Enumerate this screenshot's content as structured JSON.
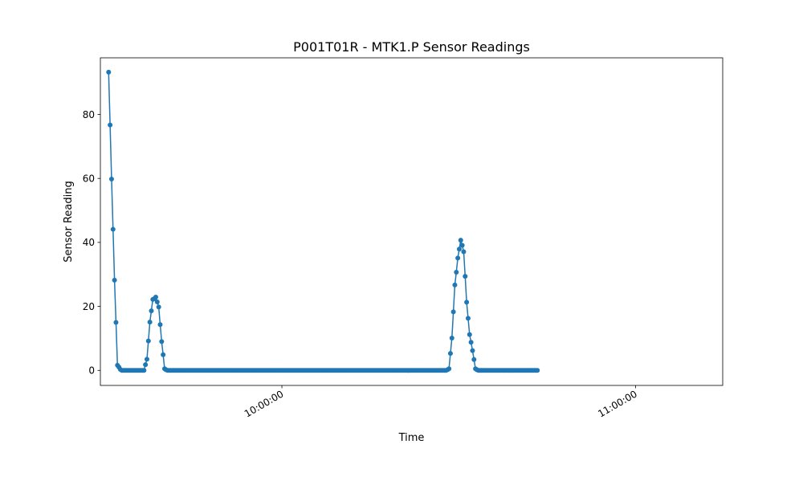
{
  "chart_data": {
    "type": "line",
    "title": "P001T01R - MTK1.P Sensor Readings",
    "xlabel": "Time",
    "ylabel": "Sensor Reading",
    "x_start": "09:30:36",
    "x_step_seconds": 15,
    "xlim": [
      "09:29:12",
      "11:14:48"
    ],
    "ylim": [
      -4.7,
      97.7
    ],
    "x_ticks": [
      "10:00:00",
      "11:00:00"
    ],
    "y_ticks": [
      0,
      20,
      40,
      60,
      80
    ],
    "grid": false,
    "legend": "none",
    "series": [
      {
        "color": "#1f77b4",
        "marker": "circle",
        "values": [
          93.2,
          76.7,
          59.8,
          44.1,
          28.2,
          15.0,
          1.6,
          1.0,
          0.3,
          0,
          0,
          0,
          0,
          0,
          0,
          0,
          0,
          0,
          0,
          0,
          0,
          0,
          0,
          0,
          0,
          1.8,
          3.5,
          9.2,
          15.1,
          18.6,
          22.2,
          22.4,
          22.9,
          21.4,
          19.8,
          14.3,
          9.0,
          4.9,
          0.5,
          0.2,
          0,
          0,
          0,
          0,
          0,
          0,
          0,
          0,
          0,
          0,
          0,
          0,
          0,
          0,
          0,
          0,
          0,
          0,
          0,
          0,
          0,
          0,
          0,
          0,
          0,
          0,
          0,
          0,
          0,
          0,
          0,
          0,
          0,
          0,
          0,
          0,
          0,
          0,
          0,
          0,
          0,
          0,
          0,
          0,
          0,
          0,
          0,
          0,
          0,
          0,
          0,
          0,
          0,
          0,
          0,
          0,
          0,
          0,
          0,
          0,
          0,
          0,
          0,
          0,
          0,
          0,
          0,
          0,
          0,
          0,
          0,
          0,
          0,
          0,
          0,
          0,
          0,
          0,
          0,
          0,
          0,
          0,
          0,
          0,
          0,
          0,
          0,
          0,
          0,
          0,
          0,
          0,
          0,
          0,
          0,
          0,
          0,
          0,
          0,
          0,
          0,
          0,
          0,
          0,
          0,
          0,
          0,
          0,
          0,
          0,
          0,
          0,
          0,
          0,
          0,
          0,
          0,
          0,
          0,
          0,
          0,
          0,
          0,
          0,
          0,
          0,
          0,
          0,
          0,
          0,
          0,
          0,
          0,
          0,
          0,
          0,
          0,
          0,
          0,
          0,
          0,
          0,
          0,
          0,
          0,
          0,
          0,
          0,
          0,
          0,
          0,
          0,
          0,
          0,
          0,
          0,
          0,
          0,
          0,
          0,
          0,
          0,
          0,
          0,
          0,
          0,
          0,
          0,
          0,
          0,
          0,
          0,
          0,
          0,
          0,
          0,
          0,
          0,
          0,
          0,
          0,
          0,
          0,
          0,
          0,
          0,
          0,
          0,
          0,
          0,
          0.2,
          0.5,
          5.3,
          10.1,
          18.3,
          26.7,
          30.7,
          35.1,
          37.9,
          40.7,
          39.1,
          37.1,
          29.4,
          21.3,
          16.3,
          11.2,
          8.8,
          6.2,
          3.4,
          0.5,
          0.2,
          0,
          0,
          0,
          0,
          0,
          0,
          0,
          0,
          0,
          0,
          0,
          0,
          0,
          0,
          0,
          0,
          0,
          0,
          0,
          0,
          0,
          0,
          0,
          0,
          0,
          0,
          0,
          0,
          0,
          0,
          0,
          0,
          0,
          0,
          0,
          0,
          0,
          0,
          0,
          0,
          0
        ]
      }
    ]
  }
}
